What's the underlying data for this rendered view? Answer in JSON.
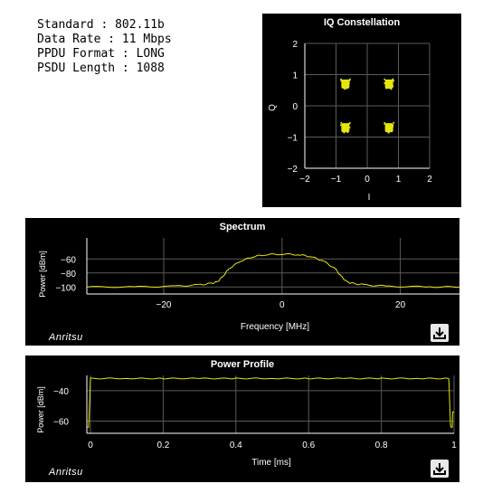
{
  "info": {
    "standard": "Standard : 802.11b",
    "data_rate": "Data Rate : 11 Mbps",
    "ppdu_format": "PPDU Format : LONG",
    "psdu_length": "PSDU Length : 1088"
  },
  "brand": "Anritsu",
  "icons": {
    "download": "download-icon"
  },
  "colors": {
    "trace": "#e6e60f",
    "panel_bg": "#000000",
    "grid": "#5a5a5a",
    "text": "#ffffff"
  },
  "chart_data": [
    {
      "type": "scatter",
      "title": "IQ Constellation",
      "xlabel": "I",
      "ylabel": "Q",
      "xlim": [
        -2,
        2
      ],
      "ylim": [
        -2,
        2
      ],
      "xticks": [
        "−2",
        "−1",
        "0",
        "1",
        "2"
      ],
      "yticks": [
        "2",
        "1",
        "0",
        "−1",
        "−2"
      ],
      "clusters": [
        {
          "x": -0.7,
          "y": 0.7
        },
        {
          "x": 0.7,
          "y": 0.7
        },
        {
          "x": -0.7,
          "y": -0.7
        },
        {
          "x": 0.7,
          "y": -0.7
        }
      ],
      "grid": true
    },
    {
      "type": "line",
      "title": "Spectrum",
      "xlabel": "Frequency [MHz]",
      "ylabel": "Power [dBm]",
      "xlim": [
        -33,
        30
      ],
      "ylim": [
        -110,
        -30
      ],
      "xticks": [
        "−20",
        "0",
        "20"
      ],
      "yticks": [
        "−60",
        "−80",
        "−100"
      ],
      "series": [
        {
          "x": [
            -33,
            -25,
            -18,
            -14,
            -12,
            -11,
            -10,
            -9,
            -7,
            -5,
            -3,
            0,
            3,
            5,
            7,
            9,
            10,
            11,
            12,
            14,
            18,
            25,
            30
          ],
          "values": [
            -100,
            -100,
            -99,
            -97,
            -95,
            -93,
            -85,
            -74,
            -63,
            -57,
            -54,
            -53,
            -54,
            -57,
            -63,
            -74,
            -85,
            -93,
            -95,
            -97,
            -99,
            -100,
            -100
          ]
        }
      ],
      "grid": true
    },
    {
      "type": "line",
      "title": "Power Profile",
      "xlabel": "Time [ms]",
      "ylabel": "Power [dBm]",
      "xlim": [
        -0.01,
        1.0
      ],
      "ylim": [
        -68,
        -30
      ],
      "xticks": [
        "0",
        "0.2",
        "0.4",
        "0.6",
        "0.8",
        "1"
      ],
      "yticks": [
        "−40",
        "−60"
      ],
      "series": [
        {
          "x": [
            -0.01,
            -0.005,
            -0.004,
            0.0,
            0.1,
            0.2,
            0.3,
            0.4,
            0.5,
            0.6,
            0.7,
            0.8,
            0.9,
            0.985,
            0.986,
            0.99,
            0.991,
            0.995,
            0.996,
            1.0
          ],
          "values": [
            -64,
            -64,
            -58,
            -32,
            -32,
            -32,
            -32,
            -32,
            -32,
            -32,
            -32,
            -32,
            -32,
            -32,
            -35,
            -62,
            -64,
            -64,
            -54,
            -54
          ]
        }
      ],
      "grid": true
    }
  ]
}
